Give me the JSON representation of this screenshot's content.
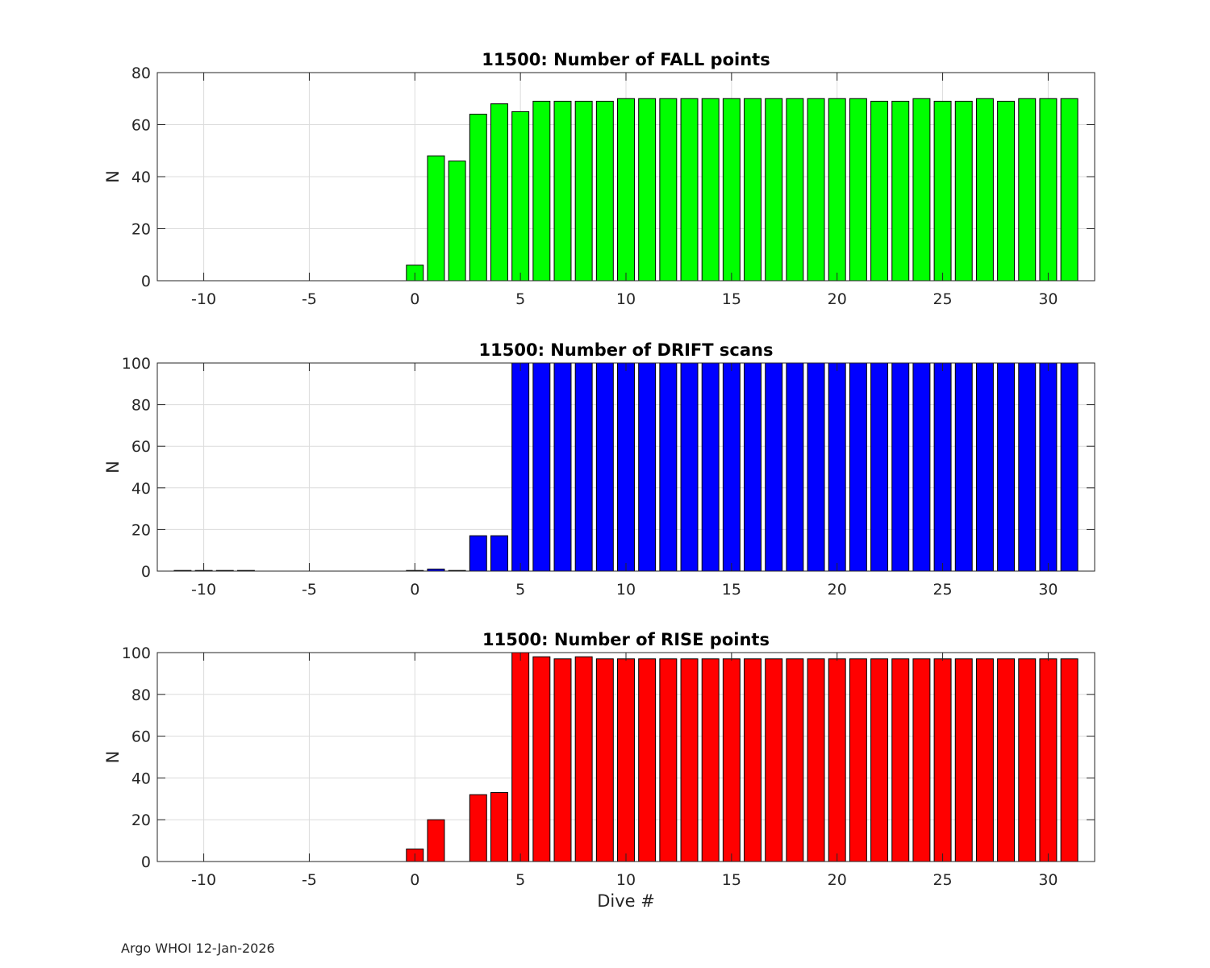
{
  "footer": {
    "text": "Argo WHOI 12-Jan-2026"
  },
  "chart_data": [
    {
      "type": "bar",
      "title": "11500: Number of FALL points",
      "xlabel": "",
      "ylabel": "N",
      "xlim": [
        -12.2,
        32.2
      ],
      "ylim": [
        0,
        80
      ],
      "xticks": [
        -10,
        -5,
        0,
        5,
        10,
        15,
        20,
        25,
        30
      ],
      "xtick_labels": [
        "-10",
        "-5",
        "0",
        "5",
        "10",
        "15",
        "20",
        "25",
        "30"
      ],
      "yticks": [
        0,
        20,
        40,
        60,
        80
      ],
      "ytick_labels": [
        "0",
        "20",
        "40",
        "60",
        "80"
      ],
      "grid": true,
      "color": "#00ff00",
      "x": [
        0,
        1,
        2,
        3,
        4,
        5,
        6,
        7,
        8,
        9,
        10,
        11,
        12,
        13,
        14,
        15,
        16,
        17,
        18,
        19,
        20,
        21,
        22,
        23,
        24,
        25,
        26,
        27,
        28,
        29,
        30,
        31
      ],
      "values": [
        6,
        48,
        46,
        64,
        68,
        65,
        69,
        69,
        69,
        69,
        70,
        70,
        70,
        70,
        70,
        70,
        70,
        70,
        70,
        70,
        70,
        70,
        69,
        69,
        70,
        69,
        69,
        70,
        69,
        70,
        70,
        70
      ]
    },
    {
      "type": "bar",
      "title": "11500: Number of DRIFT scans",
      "xlabel": "",
      "ylabel": "N",
      "xlim": [
        -12.2,
        32.2
      ],
      "ylim": [
        0,
        100
      ],
      "xticks": [
        -10,
        -5,
        0,
        5,
        10,
        15,
        20,
        25,
        30
      ],
      "xtick_labels": [
        "-10",
        "-5",
        "0",
        "5",
        "10",
        "15",
        "20",
        "25",
        "30"
      ],
      "yticks": [
        0,
        20,
        40,
        60,
        80,
        100
      ],
      "ytick_labels": [
        "0",
        "20",
        "40",
        "60",
        "80",
        "100"
      ],
      "grid": true,
      "color": "#0000ff",
      "x": [
        -11,
        -10,
        -9,
        -8,
        0,
        1,
        2,
        3,
        4,
        5,
        6,
        7,
        8,
        9,
        10,
        11,
        12,
        13,
        14,
        15,
        16,
        17,
        18,
        19,
        20,
        21,
        22,
        23,
        24,
        25,
        26,
        27,
        28,
        29,
        30,
        31
      ],
      "values": [
        0,
        0,
        0,
        0,
        0,
        1,
        0,
        17,
        17,
        101,
        101,
        101,
        101,
        101,
        101,
        101,
        101,
        101,
        101,
        101,
        101,
        101,
        101,
        101,
        101,
        101,
        101,
        101,
        101,
        101,
        101,
        101,
        101,
        101,
        101,
        101
      ]
    },
    {
      "type": "bar",
      "title": "11500: Number of RISE points",
      "xlabel": "Dive #",
      "ylabel": "N",
      "xlim": [
        -12.2,
        32.2
      ],
      "ylim": [
        0,
        100
      ],
      "xticks": [
        -10,
        -5,
        0,
        5,
        10,
        15,
        20,
        25,
        30
      ],
      "xtick_labels": [
        "-10",
        "-5",
        "0",
        "5",
        "10",
        "15",
        "20",
        "25",
        "30"
      ],
      "yticks": [
        0,
        20,
        40,
        60,
        80,
        100
      ],
      "ytick_labels": [
        "0",
        "20",
        "40",
        "60",
        "80",
        "100"
      ],
      "grid": true,
      "color": "#ff0000",
      "x": [
        0,
        1,
        3,
        4,
        5,
        6,
        7,
        8,
        9,
        10,
        11,
        12,
        13,
        14,
        15,
        16,
        17,
        18,
        19,
        20,
        21,
        22,
        23,
        24,
        25,
        26,
        27,
        28,
        29,
        30,
        31
      ],
      "values": [
        6,
        20,
        32,
        33,
        100,
        98,
        97,
        98,
        97,
        97,
        97,
        97,
        97,
        97,
        97,
        97,
        97,
        97,
        97,
        97,
        97,
        97,
        97,
        97,
        97,
        97,
        97,
        97,
        97,
        97,
        97
      ]
    }
  ]
}
